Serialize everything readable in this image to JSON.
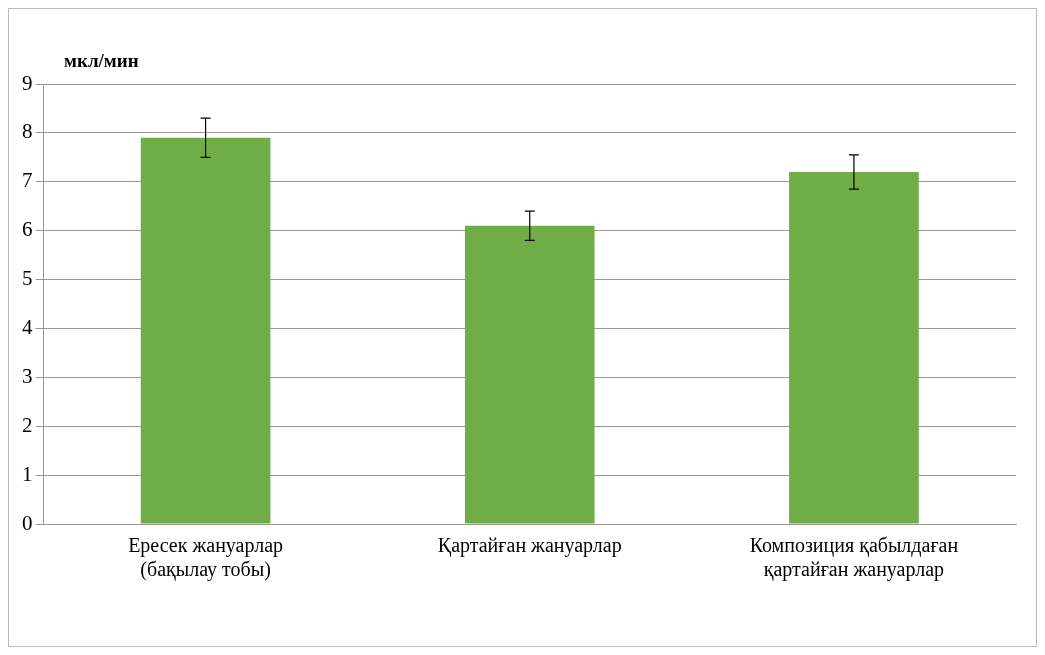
{
  "chart_data": {
    "type": "bar",
    "ylabel": "мкл/мин",
    "categories": [
      "Ересек жануарлар (бақылау тобы)",
      "Қартайған жануарлар",
      "Композиция қабылдаған қартайған жануарлар"
    ],
    "values": [
      7.9,
      6.1,
      7.2
    ],
    "errors": [
      0.4,
      0.3,
      0.35
    ],
    "color": "#70ad47",
    "ylim": [
      0,
      9
    ],
    "yticks": [
      0,
      1,
      2,
      3,
      4,
      5,
      6,
      7,
      8,
      9
    ],
    "grid": "y",
    "legend": false
  }
}
